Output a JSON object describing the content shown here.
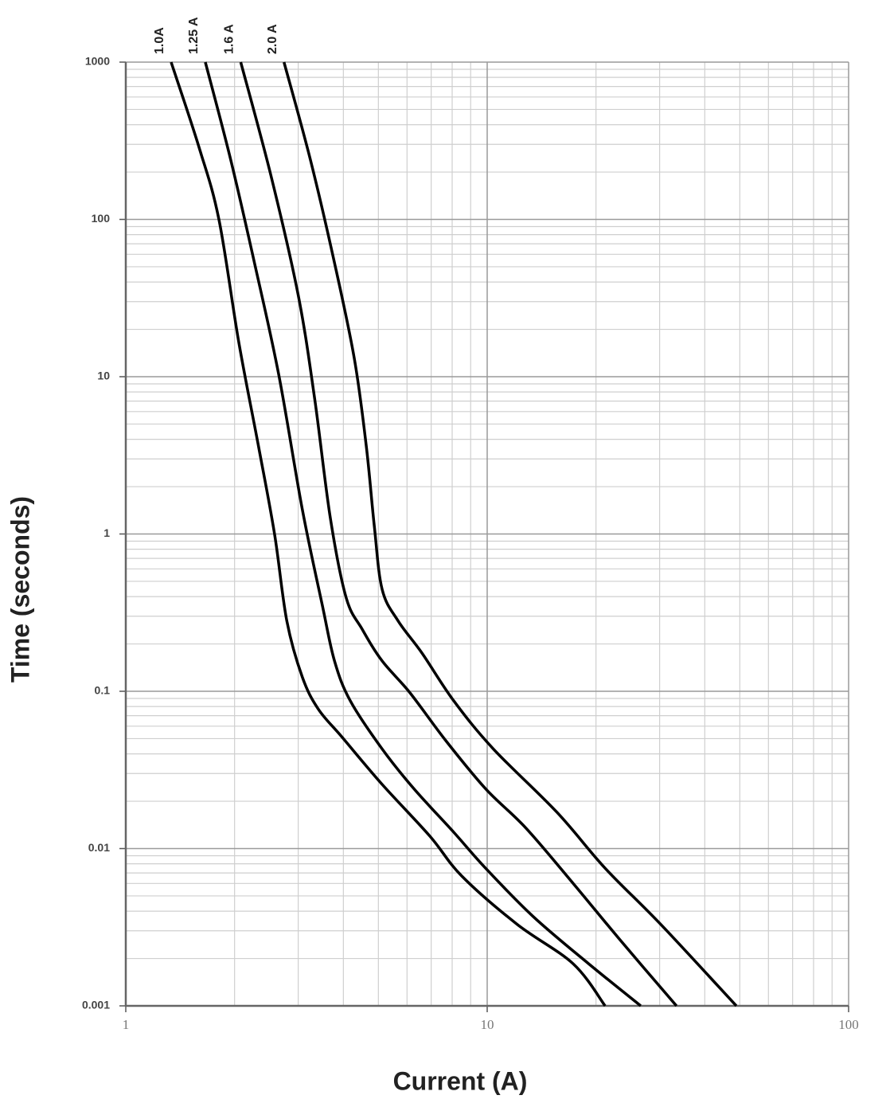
{
  "chart_data": {
    "type": "line",
    "x_label": "Current (A)",
    "y_label": "Time (seconds)",
    "xlog": true,
    "ylog": true,
    "grid": true,
    "minor_grid": true,
    "legend": "top",
    "xlim": [
      1,
      100
    ],
    "xticks": [
      1,
      10,
      100
    ],
    "ylim": [
      0.001,
      1000
    ],
    "yticks": [
      0.001,
      0.01,
      0.1,
      1,
      10,
      100,
      1000
    ],
    "series": [
      {
        "name": "1.0A",
        "color": "#000000",
        "x": [
          1.335,
          1.595,
          1.81,
          2.055,
          2.33,
          2.58,
          2.79,
          3.08,
          3.41,
          3.97,
          5.12,
          6.94,
          8.5,
          12.1,
          17.3,
          21.2
        ],
        "values": [
          1000,
          287,
          100,
          16.5,
          3.6,
          1.0,
          0.28,
          0.123,
          0.077,
          0.051,
          0.0256,
          0.012,
          0.0067,
          0.0033,
          0.00185,
          0.001
        ]
      },
      {
        "name": "1.25 A",
        "color": "#000000",
        "x": [
          1.66,
          1.95,
          2.27,
          2.65,
          3.08,
          3.5,
          3.78,
          4.18,
          5.12,
          6.27,
          8.08,
          9.9,
          13.4,
          19.1,
          26.6
        ],
        "values": [
          1000,
          241,
          53,
          10.3,
          1.43,
          0.35,
          0.156,
          0.087,
          0.043,
          0.024,
          0.0127,
          0.0075,
          0.0037,
          0.00185,
          0.001
        ]
      },
      {
        "name": "1.6 A",
        "color": "#000000",
        "x": [
          2.08,
          2.52,
          3.0,
          3.33,
          3.68,
          4.07,
          4.51,
          5.12,
          6.11,
          7.68,
          9.9,
          12.8,
          17.3,
          23.4,
          33.4
        ],
        "values": [
          1000,
          191,
          33,
          7.3,
          1.27,
          0.395,
          0.248,
          0.156,
          0.098,
          0.0486,
          0.024,
          0.0135,
          0.006,
          0.0026,
          0.001
        ]
      },
      {
        "name": "2.0 A",
        "color": "#000000",
        "x": [
          2.74,
          3.24,
          3.78,
          4.29,
          4.63,
          4.87,
          5.12,
          5.67,
          6.6,
          8.08,
          10.4,
          15.6,
          21.2,
          30.2,
          48.9
        ],
        "values": [
          1000,
          241,
          53,
          13,
          3.6,
          1.13,
          0.445,
          0.28,
          0.175,
          0.087,
          0.043,
          0.017,
          0.0075,
          0.0033,
          0.001
        ]
      }
    ]
  }
}
